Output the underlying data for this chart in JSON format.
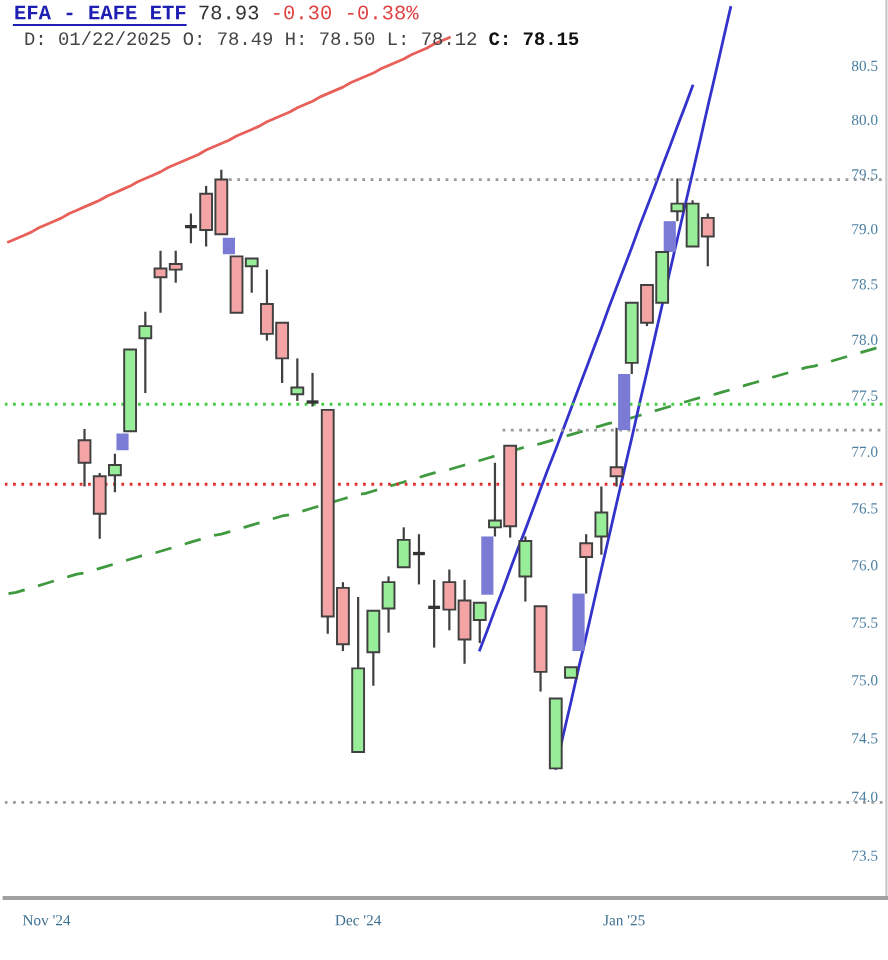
{
  "chart_data": {
    "type": "candlestick",
    "title": "EFA - EAFE ETF",
    "annotations": [
      "78.93",
      "-0.30 -0.38%",
      "D: 01/22/2025 O: 78.49 H: 78.50 L: 78.12",
      "C: 78.15"
    ],
    "log": true,
    "categories": [
      null,
      null,
      null,
      null,
      null,
      "Nov '24",
      null,
      null,
      null,
      null,
      null,
      null,
      null,
      null,
      null,
      null,
      null,
      null,
      null,
      null,
      null,
      null,
      null,
      null,
      null,
      null,
      null,
      null,
      null,
      null,
      null,
      null,
      null,
      null,
      null,
      null,
      null,
      null,
      null,
      null,
      null,
      null,
      null,
      null,
      null,
      null,
      "Dec '24",
      null,
      null,
      null,
      null,
      null,
      null,
      null,
      null,
      null,
      null,
      null,
      null,
      null,
      null,
      null,
      null,
      null,
      null,
      null,
      null,
      null,
      null,
      null,
      null,
      null,
      null,
      null,
      null,
      null,
      null,
      null,
      null,
      null,
      null,
      "Jan '25",
      null,
      null,
      null,
      null,
      null,
      null,
      null,
      null,
      null,
      null,
      null,
      null,
      null,
      null,
      null,
      null,
      null,
      null,
      null,
      null,
      null,
      null,
      null,
      null,
      null,
      null,
      null,
      null,
      null,
      null,
      null,
      null,
      null,
      null
    ],
    "color": "#404040",
    "ohlc": [
      null,
      null,
      null,
      null,
      null,
      null,
      null,
      null,
      null,
      null,
      [
        77.1,
        77.2,
        76.69,
        76.9
      ],
      null,
      [
        76.78,
        76.81,
        76.23,
        76.45
      ],
      null,
      [
        76.79,
        76.98,
        76.64,
        76.88
      ],
      null,
      [
        77.18,
        77.91,
        77.18,
        77.91
      ],
      null,
      [
        78.01,
        78.25,
        77.52,
        78.12
      ],
      null,
      [
        78.64,
        78.8,
        78.24,
        78.56
      ],
      null,
      [
        78.68,
        78.8,
        78.51,
        78.63
      ],
      null,
      [
        79.02,
        79.14,
        78.87,
        79.02
      ],
      null,
      [
        79.32,
        79.39,
        78.84,
        78.99
      ],
      null,
      [
        79.45,
        79.54,
        78.95,
        78.95
      ],
      null,
      [
        78.75,
        78.75,
        78.24,
        78.24
      ],
      null,
      [
        78.66,
        78.73,
        78.42,
        78.73
      ],
      null,
      [
        78.32,
        78.63,
        77.99,
        78.05
      ],
      null,
      [
        78.15,
        78.15,
        77.61,
        77.83
      ],
      null,
      [
        77.51,
        77.83,
        77.45,
        77.57
      ],
      null,
      [
        77.44,
        77.7,
        77.4,
        77.44
      ],
      null,
      [
        77.37,
        77.37,
        75.4,
        75.55
      ],
      null,
      [
        75.8,
        75.85,
        75.25,
        75.31
      ],
      null,
      [
        74.38,
        75.72,
        74.38,
        75.1
      ],
      null,
      [
        75.24,
        75.6,
        74.95,
        75.6
      ],
      null,
      [
        75.62,
        75.9,
        75.41,
        75.85
      ],
      null,
      [
        75.98,
        76.33,
        75.98,
        76.22
      ],
      null,
      [
        76.1,
        76.27,
        75.83,
        76.1
      ],
      null,
      [
        75.63,
        75.87,
        75.28,
        75.63
      ],
      null,
      [
        75.85,
        75.96,
        75.43,
        75.61
      ],
      null,
      [
        75.69,
        75.87,
        75.14,
        75.35
      ],
      null,
      [
        75.52,
        75.67,
        75.32,
        75.67
      ],
      null,
      [
        76.33,
        76.9,
        76.25,
        76.39
      ],
      null,
      [
        77.05,
        77.05,
        76.24,
        76.34
      ],
      null,
      [
        75.9,
        76.25,
        75.68,
        76.21
      ],
      null,
      [
        75.64,
        75.64,
        74.9,
        75.07
      ],
      null,
      [
        74.24,
        74.84,
        74.24,
        74.84
      ],
      null,
      [
        75.02,
        75.11,
        75.02,
        75.11
      ],
      null,
      [
        76.19,
        76.27,
        75.75,
        76.07
      ],
      null,
      [
        76.25,
        76.69,
        76.09,
        76.46
      ],
      null,
      [
        76.86,
        77.21,
        76.69,
        76.78
      ],
      null,
      [
        77.79,
        78.33,
        77.69,
        78.33
      ],
      null,
      [
        78.49,
        78.5,
        78.12,
        78.15
      ],
      null,
      [
        78.33,
        78.79,
        78.33,
        78.79
      ],
      null,
      [
        79.16,
        79.46,
        79.07,
        79.23
      ],
      null,
      [
        78.84,
        79.26,
        78.84,
        79.23
      ],
      null,
      [
        79.1,
        79.14,
        78.66,
        78.93
      ],
      null,
      null,
      null,
      null,
      null,
      null,
      null,
      null,
      null,
      null,
      null,
      null,
      null,
      null,
      null,
      null,
      null,
      null,
      null,
      null,
      null,
      null,
      null
    ],
    "colors": [
      null,
      null,
      null,
      null,
      null,
      null,
      null,
      null,
      null,
      null,
      "#f4a4a4",
      null,
      "#f4a4a4",
      null,
      "#98ee98",
      null,
      "#98ee98",
      null,
      "#98ee98",
      null,
      "#f4a4a4",
      null,
      "#f4a4a4",
      null,
      "#333333",
      null,
      "#f4a4a4",
      null,
      "#f4a4a4",
      null,
      "#f4a4a4",
      null,
      "#98ee98",
      null,
      "#f4a4a4",
      null,
      "#f4a4a4",
      null,
      "#98ee98",
      null,
      "#333333",
      null,
      "#f4a4a4",
      null,
      "#f4a4a4",
      null,
      "#98ee98",
      null,
      "#98ee98",
      null,
      "#98ee98",
      null,
      "#98ee98",
      null,
      "#333333",
      null,
      "#333333",
      null,
      "#f4a4a4",
      null,
      "#f4a4a4",
      null,
      "#98ee98",
      null,
      "#98ee98",
      null,
      "#f4a4a4",
      null,
      "#98ee98",
      null,
      "#f4a4a4",
      null,
      "#98ee98",
      null,
      "#98ee98",
      null,
      "#f4a4a4",
      null,
      "#98ee98",
      null,
      "#f4a4a4",
      null,
      "#98ee98",
      null,
      "#f4a4a4",
      null,
      "#98ee98",
      null,
      "#98ee98",
      null,
      "#98ee98",
      null,
      "#f4a4a4",
      null,
      null,
      null,
      null,
      null,
      null,
      null,
      null,
      null,
      null,
      null,
      null,
      null,
      null,
      null,
      null,
      null,
      null,
      null,
      null,
      null,
      null,
      null
    ],
    "series": [
      {
        "type": "line",
        "color": "#e8605a",
        "line_style": "solid",
        "values": [
          78.88,
          78.91,
          78.94,
          78.97,
          79.01,
          79.04,
          79.07,
          79.1,
          79.14,
          79.17,
          79.2,
          79.23,
          79.26,
          79.3,
          79.33,
          79.36,
          79.39,
          79.43,
          79.46,
          79.49,
          79.52,
          79.56,
          79.59,
          79.62,
          79.65,
          79.68,
          79.72,
          79.75,
          79.78,
          79.81,
          79.85,
          79.88,
          79.91,
          79.94,
          79.98,
          80.01,
          80.04,
          80.07,
          80.11,
          80.14,
          80.17,
          80.21,
          80.24,
          80.27,
          80.3,
          80.34,
          80.37,
          80.4,
          80.43,
          80.47,
          80.5,
          80.53,
          80.56,
          80.6,
          80.63,
          80.66,
          80.7,
          80.73,
          80.76,
          null,
          null,
          null,
          null,
          null,
          null,
          null,
          null,
          null,
          null,
          null,
          null,
          null,
          null,
          null,
          null,
          null,
          null,
          null,
          null,
          null,
          null,
          null,
          null,
          null,
          null,
          null,
          null,
          null,
          null,
          null,
          null,
          null,
          null,
          null,
          null,
          null,
          null,
          null,
          null,
          null,
          null,
          null,
          null,
          null,
          null,
          null,
          null,
          null,
          null,
          null,
          null,
          null,
          null,
          null,
          null,
          null
        ]
      },
      {
        "type": "line",
        "color": "#3f9a3f",
        "line_style": "dashed",
        "values": [
          75.75,
          75.76,
          75.78,
          75.8,
          75.82,
          75.84,
          75.86,
          75.88,
          75.9,
          75.92,
          75.93,
          75.95,
          75.97,
          75.99,
          76.01,
          76.03,
          76.05,
          76.07,
          76.09,
          76.1,
          76.12,
          76.14,
          76.16,
          76.18,
          76.2,
          76.22,
          76.24,
          76.26,
          76.27,
          76.29,
          76.31,
          76.33,
          76.35,
          76.37,
          76.39,
          76.41,
          76.43,
          76.44,
          76.46,
          76.48,
          76.5,
          76.52,
          76.54,
          76.56,
          76.58,
          76.6,
          76.62,
          76.63,
          76.65,
          76.67,
          76.69,
          76.71,
          76.73,
          76.75,
          76.77,
          76.79,
          76.81,
          76.83,
          76.84,
          76.86,
          76.88,
          76.9,
          76.92,
          76.94,
          76.96,
          76.98,
          77.0,
          77.02,
          77.04,
          77.05,
          77.07,
          77.09,
          77.11,
          77.13,
          77.15,
          77.17,
          77.19,
          77.21,
          77.23,
          77.25,
          77.26,
          77.28,
          77.3,
          77.32,
          77.34,
          77.36,
          77.38,
          77.4,
          77.42,
          77.44,
          77.46,
          77.48,
          77.5,
          77.51,
          77.53,
          77.55,
          77.57,
          77.59,
          77.61,
          77.63,
          77.65,
          77.67,
          77.69,
          77.71,
          77.73,
          77.75,
          77.76,
          77.78,
          77.8,
          77.82,
          77.84,
          77.86,
          77.88,
          77.9,
          77.92,
          77.94
        ]
      },
      {
        "type": "line",
        "color": "#3333cc",
        "line_style": "solid",
        "values": [
          null,
          null,
          null,
          null,
          null,
          null,
          null,
          null,
          null,
          null,
          null,
          null,
          null,
          null,
          null,
          null,
          null,
          null,
          null,
          null,
          null,
          null,
          null,
          null,
          null,
          null,
          null,
          null,
          null,
          null,
          null,
          null,
          null,
          null,
          null,
          null,
          null,
          null,
          null,
          null,
          null,
          null,
          null,
          null,
          null,
          null,
          null,
          null,
          null,
          null,
          null,
          null,
          null,
          null,
          null,
          null,
          null,
          null,
          null,
          null,
          null,
          null,
          75.26,
          75.43,
          75.61,
          75.78,
          75.96,
          76.14,
          76.31,
          76.49,
          76.67,
          76.85,
          77.02,
          77.2,
          77.38,
          77.56,
          77.74,
          77.92,
          78.1,
          78.29,
          78.47,
          78.65,
          78.83,
          79.02,
          79.2,
          79.38,
          79.57,
          79.75,
          79.94,
          80.12,
          80.31,
          null,
          null,
          null,
          null,
          null,
          null,
          null,
          null,
          null,
          null,
          null,
          null,
          null,
          null,
          null,
          null,
          null,
          null,
          null,
          null,
          null,
          null,
          null,
          null,
          null
        ]
      },
      {
        "type": "line",
        "color": "#3333cc",
        "line_style": "solid",
        "values": [
          null,
          null,
          null,
          null,
          null,
          null,
          null,
          null,
          null,
          null,
          null,
          null,
          null,
          null,
          null,
          null,
          null,
          null,
          null,
          null,
          null,
          null,
          null,
          null,
          null,
          null,
          null,
          null,
          null,
          null,
          null,
          null,
          null,
          null,
          null,
          null,
          null,
          null,
          null,
          null,
          null,
          null,
          null,
          null,
          null,
          null,
          null,
          null,
          null,
          null,
          null,
          null,
          null,
          null,
          null,
          null,
          null,
          null,
          null,
          null,
          null,
          null,
          null,
          null,
          null,
          null,
          null,
          null,
          null,
          null,
          null,
          null,
          74.24,
          74.53,
          74.81,
          75.1,
          75.38,
          75.67,
          75.96,
          76.25,
          76.54,
          76.83,
          77.12,
          77.42,
          77.71,
          78.01,
          78.31,
          78.61,
          78.91,
          79.21,
          79.51,
          79.81,
          80.12,
          80.42,
          80.73,
          81.04,
          null,
          null,
          null,
          null,
          null,
          null,
          null,
          null,
          null,
          null,
          null,
          null,
          null,
          null,
          null,
          null,
          null,
          null,
          null,
          null
        ]
      },
      {
        "type": "line",
        "color": "#999999",
        "line_style": "dotted",
        "values": [
          null,
          null,
          null,
          null,
          null,
          null,
          null,
          null,
          null,
          null,
          null,
          null,
          null,
          null,
          null,
          null,
          null,
          null,
          null,
          null,
          null,
          null,
          null,
          null,
          null,
          null,
          null,
          null,
          null,
          79.45,
          79.45,
          79.45,
          79.45,
          79.45,
          79.45,
          79.45,
          79.45,
          79.45,
          79.45,
          79.45,
          79.45,
          79.45,
          79.45,
          79.45,
          79.45,
          79.45,
          79.45,
          79.45,
          79.45,
          79.45,
          79.45,
          79.45,
          79.45,
          79.45,
          79.45,
          79.45,
          79.45,
          79.45,
          79.45,
          79.45,
          79.45,
          79.45,
          79.45,
          79.45,
          79.45,
          79.45,
          79.45,
          79.45,
          79.45,
          79.45,
          79.45,
          79.45,
          79.45,
          79.45,
          79.45,
          79.45,
          79.45,
          79.45,
          79.45,
          79.45,
          79.45,
          79.45,
          79.45,
          79.45,
          79.45,
          79.45,
          79.45,
          79.45,
          79.45,
          79.45,
          79.45,
          79.45,
          79.45,
          79.45,
          79.45,
          79.45,
          79.45,
          79.45,
          79.45,
          79.45,
          79.45,
          79.45,
          79.45,
          79.45,
          79.45,
          79.45,
          79.45,
          79.45,
          79.45,
          79.45,
          79.45,
          79.45,
          79.45,
          79.45,
          79.45,
          79.45
        ]
      },
      {
        "type": "line",
        "color": "#999999",
        "line_style": "dotted",
        "values": [
          null,
          null,
          null,
          null,
          null,
          null,
          null,
          null,
          null,
          null,
          null,
          null,
          null,
          null,
          null,
          null,
          null,
          null,
          null,
          null,
          null,
          null,
          null,
          null,
          null,
          null,
          null,
          null,
          null,
          null,
          null,
          null,
          null,
          null,
          null,
          null,
          null,
          null,
          null,
          null,
          null,
          null,
          null,
          null,
          null,
          null,
          null,
          null,
          null,
          null,
          null,
          null,
          null,
          null,
          null,
          null,
          null,
          null,
          null,
          null,
          null,
          null,
          null,
          null,
          null,
          77.19,
          77.19,
          77.19,
          77.19,
          77.19,
          77.19,
          77.19,
          77.19,
          77.19,
          77.19,
          77.19,
          77.19,
          77.19,
          77.19,
          77.19,
          77.19,
          77.19,
          77.19,
          77.19,
          77.19,
          77.19,
          77.19,
          77.19,
          77.19,
          77.19,
          77.19,
          77.19,
          77.19,
          77.19,
          77.19,
          77.19,
          77.19,
          77.19,
          77.19,
          77.19,
          77.19,
          77.19,
          77.19,
          77.19,
          77.19,
          77.19,
          77.19,
          77.19,
          77.19,
          77.19,
          77.19,
          77.19,
          77.19,
          77.19,
          77.19,
          77.19
        ]
      },
      {
        "type": "bar",
        "color": "#7b7bd6",
        "base": [
          null,
          null,
          null,
          null,
          null,
          null,
          null,
          null,
          null,
          null,
          null,
          null,
          null,
          null,
          null,
          77.01,
          null,
          null,
          null,
          null,
          null,
          null,
          null,
          null,
          null,
          null,
          null,
          null,
          null,
          78.77,
          null,
          null,
          null,
          null,
          null,
          null,
          null,
          null,
          null,
          null,
          null,
          null,
          null,
          null,
          null,
          null,
          null,
          null,
          null,
          null,
          null,
          null,
          null,
          null,
          null,
          null,
          null,
          null,
          null,
          null,
          null,
          null,
          null,
          75.74,
          null,
          null,
          null,
          null,
          null,
          null,
          null,
          null,
          null,
          null,
          null,
          75.25,
          null,
          null,
          null,
          null,
          null,
          77.19,
          null,
          null,
          null,
          null,
          null,
          78.79,
          null,
          null,
          null,
          null,
          null,
          null,
          null,
          null,
          null,
          null,
          null,
          null,
          null,
          null,
          null,
          null,
          null,
          null,
          null,
          null,
          null,
          null,
          null,
          null,
          null,
          null,
          null,
          null
        ],
        "values": [
          null,
          null,
          null,
          null,
          null,
          null,
          null,
          null,
          null,
          null,
          null,
          null,
          null,
          null,
          null,
          0.15,
          null,
          null,
          null,
          null,
          null,
          null,
          null,
          null,
          null,
          null,
          null,
          null,
          null,
          0.15,
          null,
          null,
          null,
          null,
          null,
          null,
          null,
          null,
          null,
          null,
          null,
          null,
          null,
          null,
          null,
          null,
          null,
          null,
          null,
          null,
          null,
          null,
          null,
          null,
          null,
          null,
          null,
          null,
          null,
          null,
          null,
          null,
          null,
          0.51,
          null,
          null,
          null,
          null,
          null,
          null,
          null,
          null,
          null,
          null,
          null,
          0.5,
          null,
          null,
          null,
          null,
          null,
          0.5,
          null,
          null,
          null,
          null,
          null,
          0.28,
          null,
          null,
          null,
          null,
          null,
          null,
          null,
          null,
          null,
          null,
          null,
          null,
          null,
          null,
          null,
          null,
          null,
          null,
          null,
          null,
          null,
          null,
          null,
          null,
          null,
          null,
          null,
          null
        ]
      }
    ],
    "ref_lines": [
      {
        "axis": "y",
        "value": 77.42,
        "color": "#44cc44",
        "line_style": "dotted"
      },
      {
        "axis": "y",
        "value": 76.71,
        "color": "#e03030",
        "line_style": "dotted"
      },
      {
        "axis": "y",
        "value": 73.95,
        "color": "#999999",
        "line_style": "dotted"
      }
    ],
    "ylim": [
      73.14,
      81.11
    ],
    "yticks": [
      {
        "value": 73.5,
        "label": "73.5"
      },
      {
        "value": 74,
        "label": "74.0"
      },
      {
        "value": 74.5,
        "label": "74.5"
      },
      {
        "value": 75,
        "label": "75.0"
      },
      {
        "value": 75.5,
        "label": "75.5"
      },
      {
        "value": 76,
        "label": "76.0"
      },
      {
        "value": 76.5,
        "label": "76.5"
      },
      {
        "value": 77,
        "label": "77.0"
      },
      {
        "value": 77.5,
        "label": "77.5"
      },
      {
        "value": 78,
        "label": "78.0"
      },
      {
        "value": 78.5,
        "label": "78.5"
      },
      {
        "value": 79,
        "label": "79.0"
      },
      {
        "value": 79.5,
        "label": "79.5"
      },
      {
        "value": 80,
        "label": "80.0"
      },
      {
        "value": 80.5,
        "label": "80.5"
      }
    ],
    "grid": false
  }
}
